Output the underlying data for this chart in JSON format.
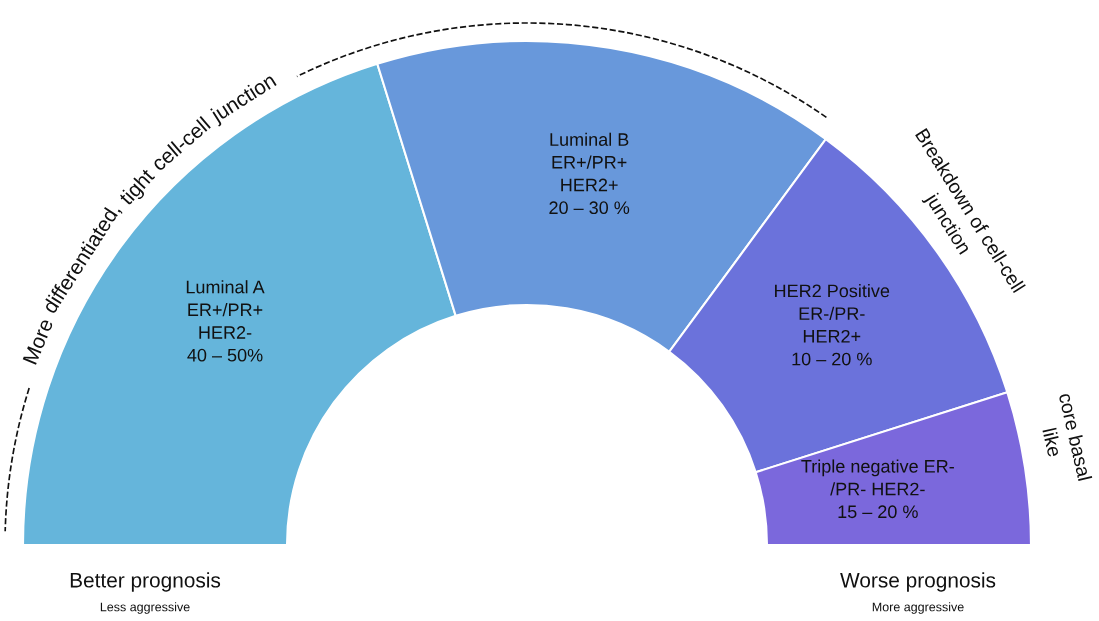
{
  "chart_data": {
    "type": "donut",
    "categories": [
      "Luminal A\nER+/PR+\nHER2-\n40 – 50%",
      "Luminal B\nER+/PR+\nHER2+\n20 – 30 %",
      "HER2 Positive\nER-/PR-\nHER2+\n10 – 20 %",
      "Triple negative ER-\n/PR- HER2-\n15 – 20 %"
    ],
    "values": [
      40.4,
      29.8,
      20.0,
      9.8
    ],
    "colors": [
      "#65b5db",
      "#6898db",
      "#6b72db",
      "#7b68dc"
    ],
    "annotations": [
      "More differentiated, tight cell-cell junction",
      "Breakdown of cell-cell\njunction",
      "core basal\nlike",
      "Better prognosis",
      "Less aggressive",
      "Worse prognosis",
      "More aggressive"
    ]
  }
}
